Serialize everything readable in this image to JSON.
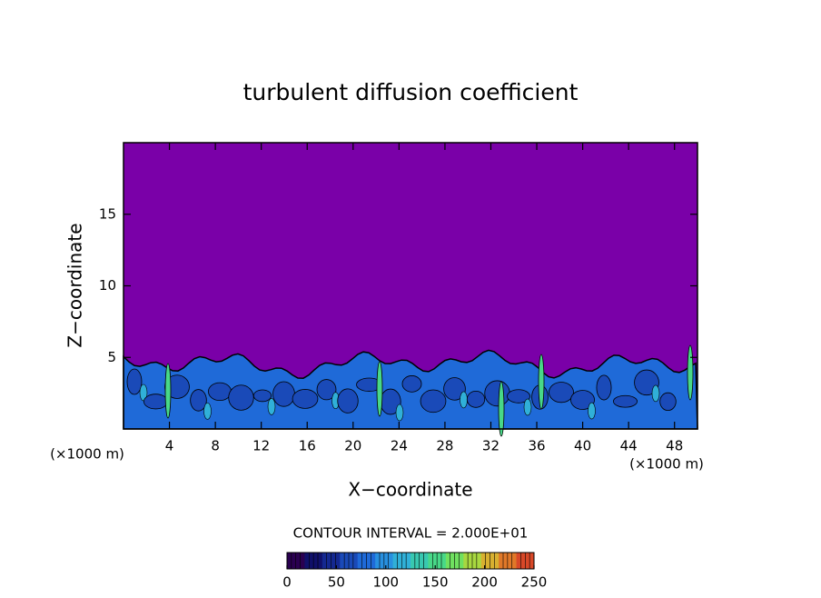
{
  "chart_data": {
    "type": "contour",
    "title": "turbulent diffusion coefficient",
    "x_label": "X−coordinate",
    "y_label": "Z−coordinate",
    "x_unit": "(×1000 m)",
    "xlim": [
      0,
      50
    ],
    "xticks": [
      4,
      8,
      12,
      16,
      20,
      24,
      28,
      32,
      36,
      40,
      44,
      48
    ],
    "ylim": [
      0,
      20
    ],
    "yticks": [
      5,
      10,
      15
    ],
    "background_color": "#7a00a8",
    "contour_interval_label": "CONTOUR INTERVAL = 2.000E+01",
    "colorbar": {
      "lim": [
        0,
        250
      ],
      "ticks": [
        0,
        50,
        100,
        150,
        200,
        250
      ],
      "colors": [
        "#2a0050",
        "#10106a",
        "#142890",
        "#1a4ab8",
        "#1f6ad8",
        "#2890e0",
        "#30b0d8",
        "#38c8b0",
        "#48d888",
        "#70e060",
        "#a8d840",
        "#d8b030",
        "#e07828",
        "#d84828"
      ]
    }
  }
}
